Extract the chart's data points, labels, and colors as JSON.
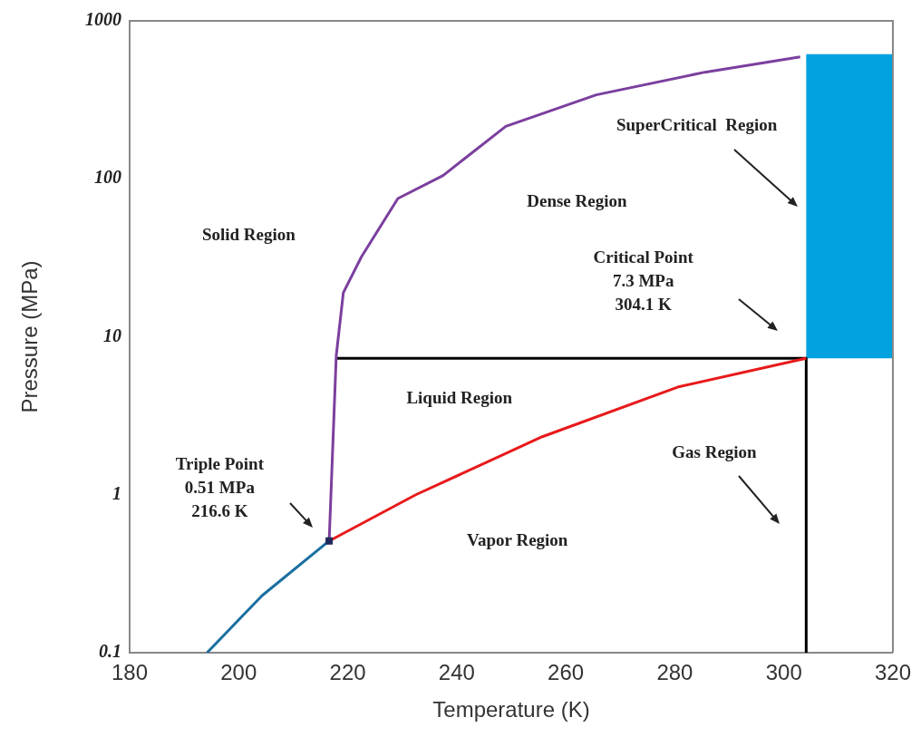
{
  "chart_data": {
    "type": "line",
    "xlabel": "Temperature (K)",
    "ylabel": "Pressure (MPa)",
    "xlim": [
      180,
      320
    ],
    "xticks": [
      180,
      200,
      220,
      240,
      260,
      280,
      300,
      320
    ],
    "ylim": [
      0.1,
      1000
    ],
    "yticks": [
      0.1,
      1,
      10,
      100,
      1000
    ],
    "log": "y",
    "grid": false,
    "legend": false,
    "series": [
      {
        "color": "#1a6fa0",
        "x": [
          194.2,
          204.3,
          216.6
        ],
        "values": [
          0.1,
          0.23,
          0.51
        ]
      },
      {
        "color": "#7b3f9e",
        "x": [
          216.6,
          217.9,
          219.2,
          222.5,
          229.2,
          237.5,
          249,
          265.6,
          285.5,
          303
        ],
        "values": [
          0.51,
          7.6,
          19,
          32,
          75,
          105,
          215,
          340,
          473,
          592
        ]
      },
      {
        "color": "#e8191b",
        "x": [
          216.6,
          232.5,
          255.7,
          280.5,
          304.1
        ],
        "values": [
          0.51,
          1.0,
          2.33,
          4.8,
          7.3
        ]
      },
      {
        "color": "#000000",
        "x": [
          217.9,
          304.1
        ],
        "values": [
          7.3,
          7.3
        ]
      },
      {
        "color": "#000000",
        "x": [
          304.1,
          304.1
        ],
        "values": [
          7.3,
          0.1
        ]
      },
      {
        "type": "area",
        "color": "#00a2e0",
        "x": [
          304.1,
          320
        ],
        "values": [
          null,
          null
        ],
        "lower": [
          7.3,
          7.3
        ],
        "upper": [
          615,
          615
        ]
      },
      {
        "type": "scatter",
        "color": "#1f2a5a",
        "marker": "square",
        "x": [
          216.6
        ],
        "values": [
          0.51
        ]
      }
    ],
    "annotations": [
      "SuperCritical  Region",
      "Dense Region",
      "Solid Region",
      "Critical Point\n7.3 MPa\n304.1 K",
      "Liquid Region",
      "Gas Region",
      "Vapor Region",
      "Triple Point\n0.51 MPa\n216.6 K"
    ]
  }
}
